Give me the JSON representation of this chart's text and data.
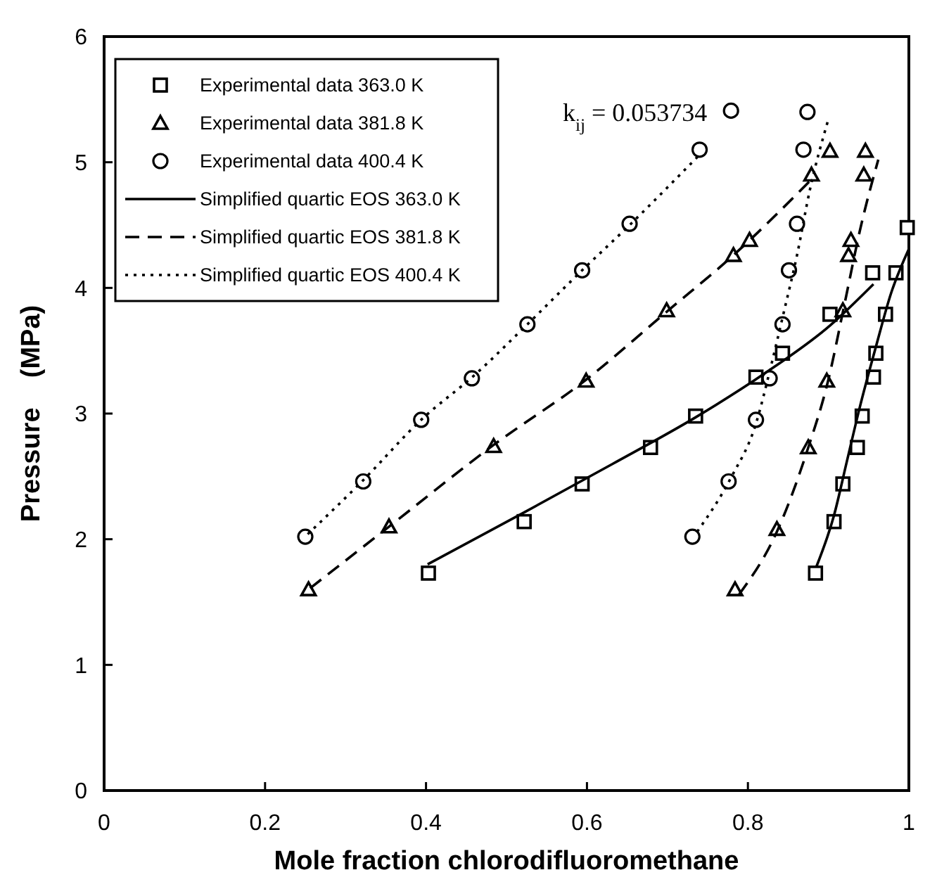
{
  "chart_data": {
    "type": "line",
    "xlabel": "Mole fraction chlorodifluoromethane",
    "ylabel": "Pressure    (MPa)",
    "xlim": [
      0,
      1
    ],
    "xticks": [
      0,
      0.2,
      0.4,
      0.6,
      0.8,
      1
    ],
    "ylim": [
      0,
      6
    ],
    "yticks": [
      0,
      1,
      2,
      3,
      4,
      5,
      6
    ],
    "grid": false,
    "legend": "top left",
    "annotations": [
      "k$_{ij}$ = 0.053734"
    ],
    "series": [
      {
        "name": "Experimental data 363.0 K",
        "type": "scatter",
        "marker": "square",
        "color": "#000000",
        "x": [
          0.403,
          0.522,
          0.594,
          0.679,
          0.735,
          0.81,
          0.843,
          0.902,
          0.955,
          0.998,
          0.984,
          0.971,
          0.959,
          0.956,
          0.942,
          0.936,
          0.918,
          0.907,
          0.884
        ],
        "values": [
          1.73,
          2.14,
          2.44,
          2.73,
          2.98,
          3.29,
          3.48,
          3.79,
          4.12,
          4.48,
          4.12,
          3.79,
          3.48,
          3.29,
          2.98,
          2.73,
          2.44,
          2.14,
          1.73
        ]
      },
      {
        "name": "Experimental data 381.8 K",
        "type": "scatter",
        "marker": "triangle",
        "color": "#000000",
        "x": [
          0.254,
          0.354,
          0.484,
          0.599,
          0.699,
          0.782,
          0.802,
          0.879,
          0.902,
          0.946,
          0.944,
          0.928,
          0.925,
          0.918,
          0.898,
          0.875,
          0.836,
          0.784
        ],
        "values": [
          1.6,
          2.1,
          2.74,
          3.26,
          3.82,
          4.26,
          4.38,
          4.9,
          5.09,
          5.09,
          4.9,
          4.38,
          4.26,
          3.82,
          3.26,
          2.73,
          2.08,
          1.6
        ]
      },
      {
        "name": "Experimental data 400.4 K",
        "type": "scatter",
        "marker": "circle",
        "color": "#000000",
        "x": [
          0.25,
          0.322,
          0.394,
          0.457,
          0.526,
          0.594,
          0.653,
          0.74,
          0.779,
          0.874,
          0.869,
          0.861,
          0.851,
          0.843,
          0.827,
          0.81,
          0.776,
          0.731
        ],
        "values": [
          2.02,
          2.46,
          2.95,
          3.28,
          3.71,
          4.14,
          4.51,
          5.1,
          5.41,
          5.4,
          5.1,
          4.51,
          4.14,
          3.71,
          3.28,
          2.95,
          2.46,
          2.02
        ]
      },
      {
        "name": "Simplified quartic EOS 363.0 K",
        "line_style": "solid",
        "marker": "none",
        "color": "#000000",
        "x": [
          0.402,
          0.521,
          0.632,
          0.735,
          0.821,
          0.902,
          0.956
        ],
        "values": [
          1.8,
          2.21,
          2.6,
          2.97,
          3.32,
          3.7,
          4.03
        ]
      },
      {
        "line_style": "solid",
        "marker": "none",
        "color": "#000000",
        "x": [
          0.885,
          0.907,
          0.923,
          0.939,
          0.959,
          0.978,
          1.0
        ],
        "values": [
          1.78,
          2.19,
          2.62,
          3.05,
          3.53,
          3.96,
          4.31
        ]
      },
      {
        "name": "Simplified quartic EOS 381.8 K",
        "line_style": "dashed",
        "marker": "none",
        "color": "#000000",
        "x": [
          0.256,
          0.354,
          0.484,
          0.599,
          0.699,
          0.782,
          0.88
        ],
        "values": [
          1.61,
          2.1,
          2.75,
          3.27,
          3.81,
          4.26,
          4.87
        ]
      },
      {
        "line_style": "dashed",
        "marker": "none",
        "color": "#000000",
        "x": [
          0.789,
          0.836,
          0.874,
          0.9,
          0.92,
          0.94,
          0.962
        ],
        "values": [
          1.56,
          2.06,
          2.71,
          3.27,
          3.87,
          4.48,
          5.02
        ]
      },
      {
        "name": "Simplified quartic EOS 400.4 K",
        "line_style": "dotted",
        "marker": "none",
        "color": "#000000",
        "x": [
          0.253,
          0.322,
          0.394,
          0.461,
          0.526,
          0.594,
          0.653,
          0.74
        ],
        "values": [
          2.04,
          2.47,
          2.95,
          3.31,
          3.71,
          4.14,
          4.5,
          5.06
        ]
      },
      {
        "line_style": "dotted",
        "marker": "none",
        "color": "#000000",
        "x": [
          0.737,
          0.779,
          0.81,
          0.828,
          0.844,
          0.861,
          0.877,
          0.899
        ],
        "values": [
          2.06,
          2.49,
          2.92,
          3.36,
          3.79,
          4.26,
          4.78,
          5.32
        ]
      }
    ]
  }
}
